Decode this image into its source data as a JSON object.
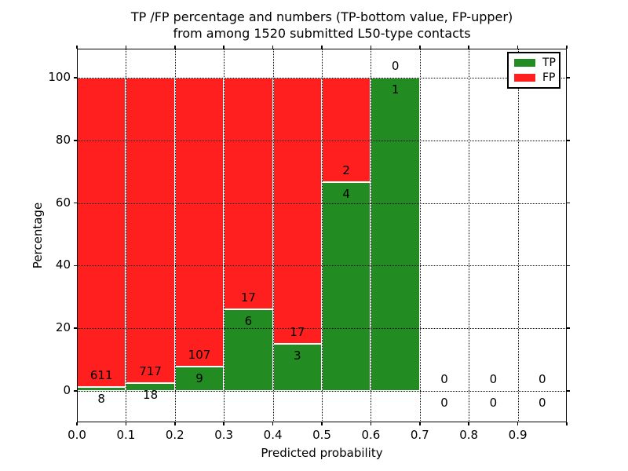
{
  "chart_data": {
    "type": "bar",
    "stacked": true,
    "title": "TP /FP percentage and numbers (TP-bottom value, FP-upper) from among 1520 submitted L50-type contacts",
    "title_line1": "TP /FP percentage and numbers (TP-bottom value, FP-upper)",
    "title_line2": "from among 1520 submitted L50-type contacts",
    "xlabel": "Predicted probability",
    "ylabel": "Percentage",
    "xlim": [
      0.0,
      1.0
    ],
    "ylim": [
      -10,
      110
    ],
    "x_tick_labels": [
      "0.0",
      "0.1",
      "0.2",
      "0.3",
      "0.4",
      "0.5",
      "0.6",
      "0.7",
      "0.8",
      "0.9"
    ],
    "y_ticks": [
      0,
      20,
      40,
      60,
      80,
      100
    ],
    "grid": "dotted-black-over-bars",
    "total_submitted_contacts": 1520,
    "bin_width": 0.1,
    "bins": [
      {
        "x_start": 0.0,
        "tp": 8,
        "fp": 611
      },
      {
        "x_start": 0.1,
        "tp": 18,
        "fp": 717
      },
      {
        "x_start": 0.2,
        "tp": 9,
        "fp": 107
      },
      {
        "x_start": 0.3,
        "tp": 6,
        "fp": 17
      },
      {
        "x_start": 0.4,
        "tp": 3,
        "fp": 17
      },
      {
        "x_start": 0.5,
        "tp": 4,
        "fp": 2
      },
      {
        "x_start": 0.6,
        "tp": 1,
        "fp": 0
      },
      {
        "x_start": 0.7,
        "tp": 0,
        "fp": 0
      },
      {
        "x_start": 0.8,
        "tp": 0,
        "fp": 0
      },
      {
        "x_start": 0.9,
        "tp": 0,
        "fp": 0
      }
    ],
    "bars_meaning": "green bottom segment = TP percentage of bin, red upper segment = FP percentage; labels are raw counts (FP above boundary, TP below)",
    "legend": {
      "position": "upper-right",
      "entries": [
        {
          "label": "TP",
          "color": "#228b22"
        },
        {
          "label": "FP",
          "color": "#ff1f1f"
        }
      ]
    },
    "colors": {
      "tp_green": "#228b22",
      "fp_red": "#ff1f1f",
      "grid": "#000000",
      "background": "#ffffff"
    }
  }
}
